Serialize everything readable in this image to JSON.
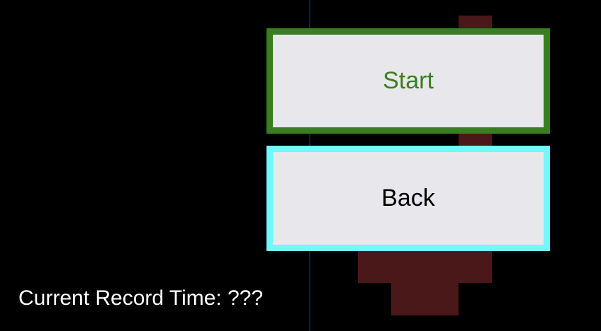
{
  "menu": {
    "start_label": "Start",
    "back_label": "Back"
  },
  "status": {
    "record_time": "Current Record Time: ???"
  },
  "colors": {
    "background": "#000000",
    "start_accent": "#3a7d22",
    "back_accent": "#70f8fa",
    "button_fill": "#e8e8ec",
    "decor_block": "#4a1818"
  }
}
